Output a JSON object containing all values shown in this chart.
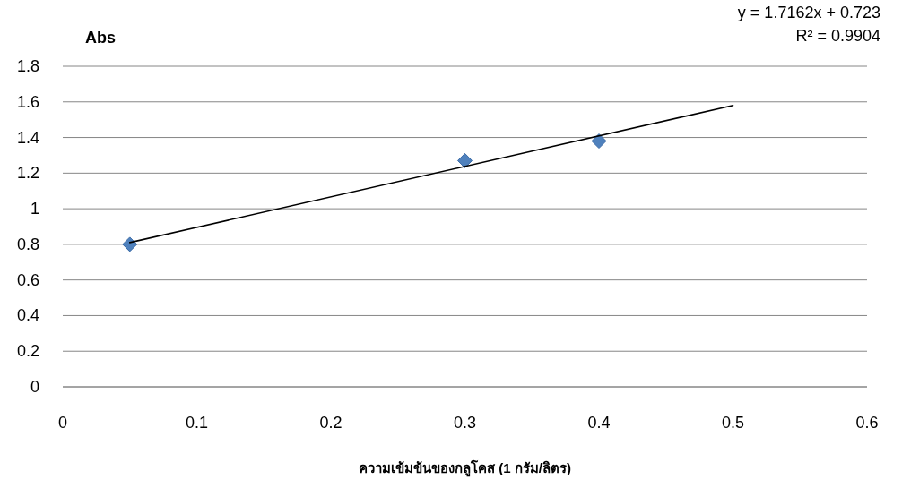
{
  "chart_data": {
    "type": "scatter",
    "ylabel": "Abs",
    "xlabel": "ความเข้มข้นของกลูโคส (1 กรัม/ลิตร)",
    "xlim": [
      0,
      0.6
    ],
    "xticks": [
      0,
      0.1,
      0.2,
      0.3,
      0.4,
      0.5,
      0.6
    ],
    "ylim": [
      0,
      1.8
    ],
    "yticks": [
      0,
      0.2,
      0.4,
      0.6,
      0.8,
      1,
      1.2,
      1.4,
      1.6,
      1.8
    ],
    "grid": "y",
    "series": [
      {
        "marker": "diamond",
        "color": "#4f81bd",
        "x": [
          0.05,
          0.3,
          0.4
        ],
        "values": [
          0.8,
          1.27,
          1.38
        ]
      },
      {
        "type": "line",
        "marker": "none",
        "color": "#000000",
        "x": [
          0.05,
          0.5
        ],
        "values": [
          0.81,
          1.58
        ]
      }
    ],
    "annotations": [
      "y = 1.7162x + 0.723",
      "R² = 0.9904"
    ]
  }
}
